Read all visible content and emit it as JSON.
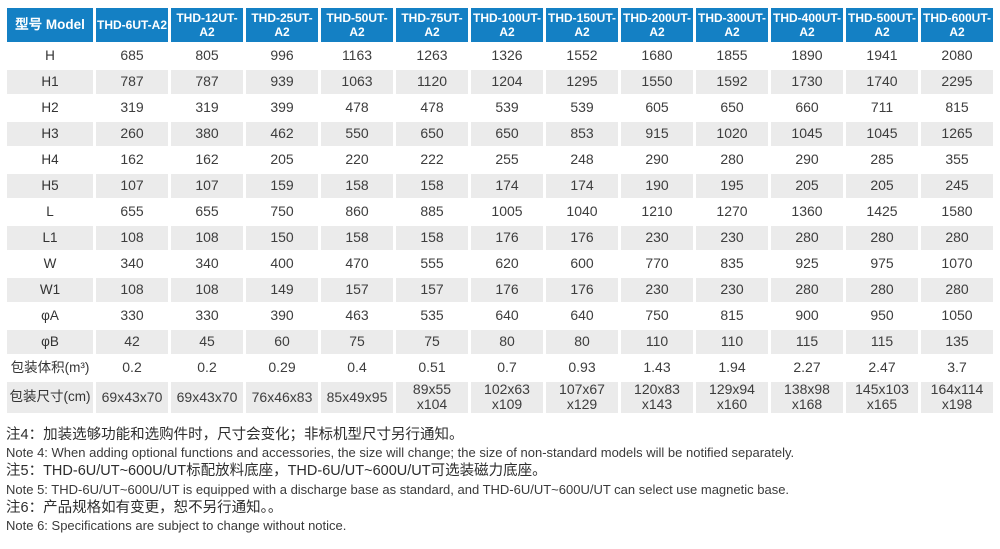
{
  "colors": {
    "header_bg": "#1480c4",
    "header_text": "#ffffff",
    "alt_row_bg": "#ebebeb",
    "body_text": "#3d3d3d"
  },
  "table": {
    "corner_label": "型号 Model",
    "columns": [
      "THD-6UT-A2",
      "THD-12UT-A2",
      "THD-25UT-A2",
      "THD-50UT-A2",
      "THD-75UT-A2",
      "THD-100UT-A2",
      "THD-150UT-A2",
      "THD-200UT-A2",
      "THD-300UT-A2",
      "THD-400UT-A2",
      "THD-500UT-A2",
      "THD-600UT-A2"
    ],
    "rows": [
      {
        "label": "H",
        "values": [
          "685",
          "805",
          "996",
          "1163",
          "1263",
          "1326",
          "1552",
          "1680",
          "1855",
          "1890",
          "1941",
          "2080"
        ]
      },
      {
        "label": "H1",
        "values": [
          "787",
          "787",
          "939",
          "1063",
          "1120",
          "1204",
          "1295",
          "1550",
          "1592",
          "1730",
          "1740",
          "2295"
        ]
      },
      {
        "label": "H2",
        "values": [
          "319",
          "319",
          "399",
          "478",
          "478",
          "539",
          "539",
          "605",
          "650",
          "660",
          "711",
          "815"
        ]
      },
      {
        "label": "H3",
        "values": [
          "260",
          "380",
          "462",
          "550",
          "650",
          "650",
          "853",
          "915",
          "1020",
          "1045",
          "1045",
          "1265"
        ]
      },
      {
        "label": "H4",
        "values": [
          "162",
          "162",
          "205",
          "220",
          "222",
          "255",
          "248",
          "290",
          "280",
          "290",
          "285",
          "355"
        ]
      },
      {
        "label": "H5",
        "values": [
          "107",
          "107",
          "159",
          "158",
          "158",
          "174",
          "174",
          "190",
          "195",
          "205",
          "205",
          "245"
        ]
      },
      {
        "label": "L",
        "values": [
          "655",
          "655",
          "750",
          "860",
          "885",
          "1005",
          "1040",
          "1210",
          "1270",
          "1360",
          "1425",
          "1580"
        ]
      },
      {
        "label": "L1",
        "values": [
          "108",
          "108",
          "150",
          "158",
          "158",
          "176",
          "176",
          "230",
          "230",
          "280",
          "280",
          "280"
        ]
      },
      {
        "label": "W",
        "values": [
          "340",
          "340",
          "400",
          "470",
          "555",
          "620",
          "600",
          "770",
          "835",
          "925",
          "975",
          "1070"
        ]
      },
      {
        "label": "W1",
        "values": [
          "108",
          "108",
          "149",
          "157",
          "157",
          "176",
          "176",
          "230",
          "230",
          "280",
          "280",
          "280"
        ]
      },
      {
        "label": "φA",
        "values": [
          "330",
          "330",
          "390",
          "463",
          "535",
          "640",
          "640",
          "750",
          "815",
          "900",
          "950",
          "1050"
        ]
      },
      {
        "label": "φB",
        "values": [
          "42",
          "45",
          "60",
          "75",
          "75",
          "80",
          "80",
          "110",
          "110",
          "115",
          "115",
          "135"
        ]
      },
      {
        "label": "包装体积(m³)",
        "values": [
          "0.2",
          "0.2",
          "0.29",
          "0.4",
          "0.51",
          "0.7",
          "0.93",
          "1.43",
          "1.94",
          "2.27",
          "2.47",
          "3.7"
        ]
      },
      {
        "label": "包装尺寸(cm)",
        "values": [
          "69x43x70",
          "69x43x70",
          "76x46x83",
          "85x49x95",
          "89x55 x104",
          "102x63 x109",
          "107x67 x129",
          "120x83 x143",
          "129x94 x160",
          "138x98 x168",
          "145x103 x165",
          "164x114 x198"
        ]
      }
    ]
  },
  "notes": [
    {
      "zh": "注4：加装选够功能和选购件时，尺寸会变化；非标机型尺寸另行通知。",
      "en": "Note 4: When adding optional functions and accessories, the size will change; the size of non-standard models will be notified separately."
    },
    {
      "zh": "注5：THD-6U/UT~600U/UT标配放料底座，THD-6U/UT~600U/UT可选装磁力底座。",
      "en": "Note 5: THD-6U/UT~600U/UT is equipped with a discharge base as standard, and THD-6U/UT~600U/UT can select use magnetic base."
    },
    {
      "zh": "注6：产品规格如有变更，恕不另行通知。。",
      "en": "Note 6: Specifications are subject to change without notice."
    }
  ]
}
